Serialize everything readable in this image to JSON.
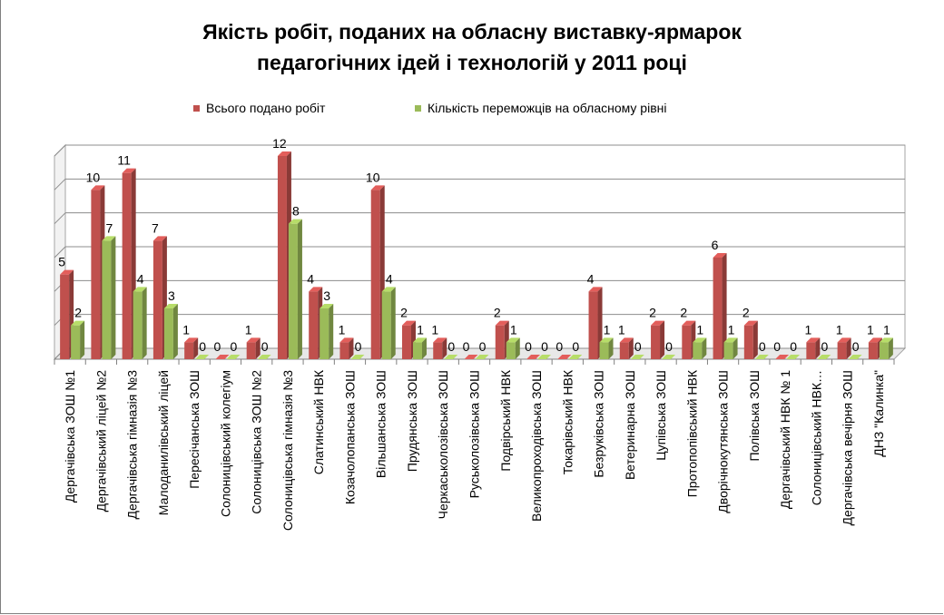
{
  "chart_data": {
    "type": "bar",
    "title": [
      "Якість робіт, поданих на обласну виставку-ярмарок",
      "педагогічних ідей і технологій у 2011 році"
    ],
    "categories": [
      "Дергачівська ЗОШ №1",
      "Дергачівський ліцей №2",
      "Дергачівська гімназія №3",
      "Малоданилівський ліцей",
      "Пересічанська ЗОШ",
      "Солоницівський колегіум",
      "Солоницівська ЗОШ №2",
      "Солоницівська гімназія №3",
      "Слатинський НВК",
      "Козачолопанська ЗОШ",
      "Вільшанська ЗОШ",
      "Прудянська ЗОШ",
      "Черкаськолозівська ЗОШ",
      "Руськолозівська ЗОШ",
      "Подвірський НВК",
      "Великопроходівська ЗОШ",
      "Токарівський НВК",
      "Безруківська ЗОШ",
      "Ветеринарна ЗОШ",
      "Цупівська ЗОШ",
      "Протопопівський НВК",
      "Дворічнокутянська ЗОШ",
      "Полівська ЗОШ",
      "Дергачівський НВК № 1",
      "Солоницівський НВК…",
      "Дергачівська вечірня ЗОШ",
      "ДНЗ \"Калинка\""
    ],
    "series": [
      {
        "name": "Всього подано робіт",
        "color": "#c0504d",
        "values": [
          5,
          10,
          11,
          7,
          1,
          0,
          1,
          12,
          4,
          1,
          10,
          2,
          1,
          0,
          2,
          0,
          0,
          4,
          1,
          2,
          2,
          6,
          2,
          0,
          1,
          1,
          1
        ]
      },
      {
        "name": "Кількість переможців на обласному рівні",
        "color": "#9bbb59",
        "values": [
          2,
          7,
          4,
          3,
          0,
          0,
          0,
          8,
          3,
          0,
          4,
          1,
          0,
          0,
          1,
          0,
          0,
          1,
          0,
          0,
          1,
          1,
          0,
          0,
          0,
          0,
          1
        ]
      }
    ],
    "ylim": [
      0,
      12
    ],
    "grid": true,
    "legend_position": "top",
    "style": "3d-clustered-column"
  }
}
